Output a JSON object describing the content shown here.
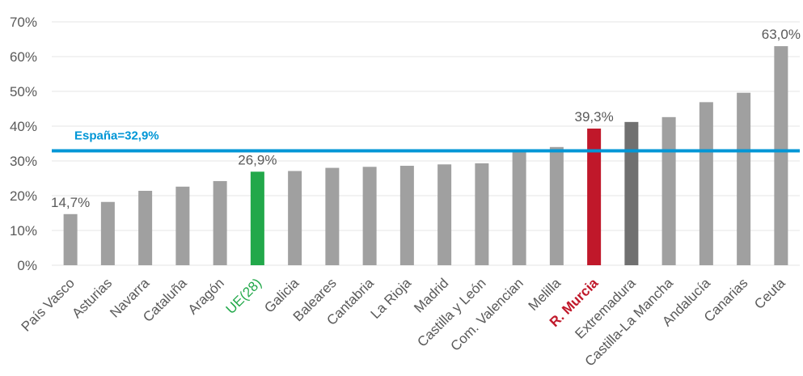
{
  "chart_data": {
    "type": "bar",
    "categories": [
      "País Vasco",
      "Asturias",
      "Navarra",
      "Cataluña",
      "Aragón",
      "UE(28)",
      "Galicia",
      "Baleares",
      "Cantabria",
      "La Rioja",
      "Madrid",
      "Castilla y León",
      "Com. Valencian",
      "Melilla",
      "R. Murcia",
      "Extremadura",
      "Castilla-La Mancha",
      "Andalucía",
      "Canarias",
      "Ceuta"
    ],
    "values": [
      14.7,
      18.2,
      21.4,
      22.6,
      24.2,
      26.9,
      27.1,
      28.0,
      28.3,
      28.6,
      29.0,
      29.3,
      32.8,
      34.0,
      39.3,
      41.2,
      42.6,
      46.9,
      49.6,
      63.0
    ],
    "bar_colors": [
      "#a0a0a0",
      "#a0a0a0",
      "#a0a0a0",
      "#a0a0a0",
      "#a0a0a0",
      "#22a84a",
      "#a0a0a0",
      "#a0a0a0",
      "#a0a0a0",
      "#a0a0a0",
      "#a0a0a0",
      "#a0a0a0",
      "#a0a0a0",
      "#a0a0a0",
      "#c0182a",
      "#707070",
      "#a0a0a0",
      "#a0a0a0",
      "#a0a0a0",
      "#a0a0a0"
    ],
    "label_colors": [
      "#595959",
      "#595959",
      "#595959",
      "#595959",
      "#595959",
      "#22a84a",
      "#595959",
      "#595959",
      "#595959",
      "#595959",
      "#595959",
      "#595959",
      "#595959",
      "#595959",
      "#c0182a",
      "#595959",
      "#595959",
      "#595959",
      "#595959",
      "#595959"
    ],
    "label_bold": [
      false,
      false,
      false,
      false,
      false,
      false,
      false,
      false,
      false,
      false,
      false,
      false,
      false,
      false,
      true,
      false,
      false,
      false,
      false,
      false
    ],
    "data_labels": [
      {
        "index": 0,
        "text": "14,7%"
      },
      {
        "index": 5,
        "text": "26,9%"
      },
      {
        "index": 14,
        "text": "39,3%"
      },
      {
        "index": 19,
        "text": "63,0%"
      }
    ],
    "reference_line": {
      "value": 32.9,
      "label": "España=32,9%",
      "color": "#0096d6"
    },
    "ylim": [
      0,
      70
    ],
    "yticks": [
      0,
      10,
      20,
      30,
      40,
      50,
      60,
      70
    ],
    "ytick_labels": [
      "0%",
      "10%",
      "20%",
      "30%",
      "40%",
      "50%",
      "60%",
      "70%"
    ],
    "grid": true,
    "title": "",
    "xlabel": "",
    "ylabel": ""
  }
}
